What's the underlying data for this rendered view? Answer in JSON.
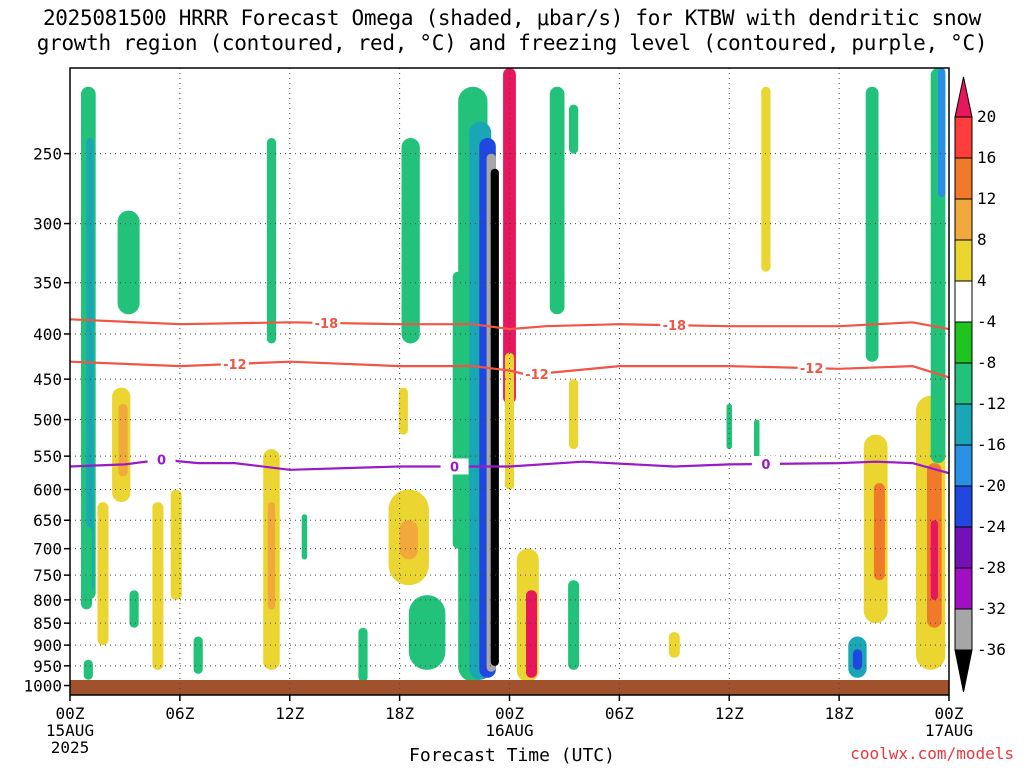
{
  "chart_data": {
    "type": "heatmap",
    "title_line1": "2025081500 HRRR Forecast Omega (shaded, μbar/s) for KTBW with dendritic snow",
    "title_line2": "growth region (contoured, red, °C) and freezing level (contoured, purple, °C)",
    "xlabel": "Forecast Time (UTC)",
    "x_ticks": [
      {
        "hour": 0,
        "label": "00Z",
        "sub": "15AUG",
        "sub2": "2025"
      },
      {
        "hour": 6,
        "label": "06Z"
      },
      {
        "hour": 12,
        "label": "12Z"
      },
      {
        "hour": 18,
        "label": "18Z"
      },
      {
        "hour": 24,
        "label": "00Z",
        "sub": "16AUG"
      },
      {
        "hour": 30,
        "label": "06Z"
      },
      {
        "hour": 36,
        "label": "12Z"
      },
      {
        "hour": 42,
        "label": "18Z"
      },
      {
        "hour": 48,
        "label": "00Z",
        "sub": "17AUG"
      }
    ],
    "xlim": [
      0,
      48
    ],
    "y_ticks": [
      250,
      300,
      350,
      400,
      450,
      500,
      550,
      600,
      650,
      700,
      750,
      800,
      850,
      900,
      950,
      1000
    ],
    "ylim": [
      200,
      1025
    ],
    "ylog": true,
    "grid": true,
    "colorbar": {
      "labels": [
        20,
        16,
        12,
        8,
        4,
        -4,
        -8,
        -12,
        -16,
        -20,
        -24,
        -28,
        -32,
        -36
      ],
      "colors": [
        "#e8175d",
        "#ff3d3d",
        "#f07a2a",
        "#f2a93b",
        "#ebd531",
        "#ffffff",
        "#1fc41f",
        "#22c27a",
        "#19a6b5",
        "#2990e6",
        "#2047e0",
        "#7510b8",
        "#a00fc4",
        "#a6a6a6",
        "#000000"
      ],
      "below_color": "#000000",
      "above_color": "#e8175d"
    },
    "contours": [
      {
        "level": -18,
        "color": "#f05545",
        "hours": [
          0,
          6,
          12,
          18,
          22,
          24,
          26,
          30,
          36,
          42,
          46,
          48
        ],
        "pressure": [
          385,
          390,
          388,
          390,
          390,
          395,
          392,
          390,
          392,
          392,
          388,
          395
        ],
        "labels": [
          {
            "hour": 14,
            "text": "-18"
          },
          {
            "hour": 33,
            "text": "-18"
          }
        ]
      },
      {
        "level": -12,
        "color": "#f05545",
        "hours": [
          0,
          6,
          12,
          18,
          22,
          24,
          25,
          30,
          36,
          42,
          46,
          48
        ],
        "pressure": [
          430,
          435,
          430,
          435,
          435,
          440,
          445,
          435,
          435,
          438,
          435,
          448
        ],
        "labels": [
          {
            "hour": 9,
            "text": "-12"
          },
          {
            "hour": 25.5,
            "text": "-12"
          },
          {
            "hour": 40.5,
            "text": "-12"
          }
        ]
      },
      {
        "level": 0,
        "color": "#9a1ac7",
        "hours": [
          0,
          3,
          5,
          7,
          9,
          12,
          18,
          24,
          28,
          33,
          36,
          42,
          44,
          46,
          48
        ],
        "pressure": [
          565,
          562,
          555,
          560,
          560,
          570,
          565,
          565,
          558,
          565,
          562,
          560,
          558,
          560,
          575
        ],
        "labels": [
          {
            "hour": 5,
            "text": "0"
          },
          {
            "hour": 21,
            "text": "0"
          },
          {
            "hour": 38,
            "text": "0"
          }
        ]
      }
    ],
    "omega_features": [
      {
        "hour": 1.0,
        "width": 0.8,
        "p_top": 210,
        "p_bot": 800,
        "value": -8
      },
      {
        "hour": 1.1,
        "width": 0.4,
        "p_top": 240,
        "p_bot": 780,
        "value": -12
      },
      {
        "hour": 3.2,
        "width": 1.2,
        "p_top": 290,
        "p_bot": 380,
        "value": -8
      },
      {
        "hour": 2.8,
        "width": 1.0,
        "p_top": 460,
        "p_bot": 620,
        "value": 6
      },
      {
        "hour": 2.9,
        "width": 0.5,
        "p_top": 480,
        "p_bot": 580,
        "value": 10
      },
      {
        "hour": 0.9,
        "width": 0.6,
        "p_top": 660,
        "p_bot": 820,
        "value": -10
      },
      {
        "hour": 1.0,
        "width": 0.5,
        "p_top": 935,
        "p_bot": 985,
        "value": -10
      },
      {
        "hour": 1.8,
        "width": 0.6,
        "p_top": 620,
        "p_bot": 900,
        "value": 5
      },
      {
        "hour": 3.5,
        "width": 0.5,
        "p_top": 780,
        "p_bot": 860,
        "value": -8
      },
      {
        "hour": 4.8,
        "width": 0.6,
        "p_top": 620,
        "p_bot": 960,
        "value": 5
      },
      {
        "hour": 5.8,
        "width": 0.6,
        "p_top": 600,
        "p_bot": 800,
        "value": 5
      },
      {
        "hour": 7.0,
        "width": 0.5,
        "p_top": 880,
        "p_bot": 970,
        "value": -8
      },
      {
        "hour": 11.0,
        "width": 0.5,
        "p_top": 240,
        "p_bot": 410,
        "value": -8
      },
      {
        "hour": 11.0,
        "width": 0.9,
        "p_top": 540,
        "p_bot": 960,
        "value": 6
      },
      {
        "hour": 11.0,
        "width": 0.4,
        "p_top": 620,
        "p_bot": 820,
        "value": 10
      },
      {
        "hour": 12.8,
        "width": 0.3,
        "p_top": 640,
        "p_bot": 720,
        "value": -8
      },
      {
        "hour": 16.0,
        "width": 0.5,
        "p_top": 860,
        "p_bot": 990,
        "value": -8
      },
      {
        "hour": 18.5,
        "width": 2.2,
        "p_top": 600,
        "p_bot": 770,
        "value": 6
      },
      {
        "hour": 18.5,
        "width": 1.0,
        "p_top": 650,
        "p_bot": 720,
        "value": 11
      },
      {
        "hour": 19.5,
        "width": 2.0,
        "p_top": 790,
        "p_bot": 960,
        "value": -8
      },
      {
        "hour": 18.2,
        "width": 0.5,
        "p_top": 460,
        "p_bot": 520,
        "value": 5
      },
      {
        "hour": 18.6,
        "width": 1.0,
        "p_top": 240,
        "p_bot": 410,
        "value": -8
      },
      {
        "hour": 21.2,
        "width": 0.6,
        "p_top": 340,
        "p_bot": 700,
        "value": -8
      },
      {
        "hour": 22.0,
        "width": 1.6,
        "p_top": 210,
        "p_bot": 990,
        "value": -10
      },
      {
        "hour": 22.4,
        "width": 1.2,
        "p_top": 230,
        "p_bot": 985,
        "value": -14
      },
      {
        "hour": 22.8,
        "width": 0.9,
        "p_top": 240,
        "p_bot": 980,
        "value": -22
      },
      {
        "hour": 23.0,
        "width": 0.5,
        "p_top": 250,
        "p_bot": 965,
        "value": -34
      },
      {
        "hour": 23.2,
        "width": 0.45,
        "p_top": 260,
        "p_bot": 950,
        "value": -40
      },
      {
        "hour": 24.0,
        "width": 0.7,
        "p_top": 200,
        "p_bot": 480,
        "value": 20
      },
      {
        "hour": 24.0,
        "width": 0.5,
        "p_top": 420,
        "p_bot": 600,
        "value": 6
      },
      {
        "hour": 25.0,
        "width": 1.2,
        "p_top": 700,
        "p_bot": 990,
        "value": 5
      },
      {
        "hour": 25.2,
        "width": 0.6,
        "p_top": 780,
        "p_bot": 980,
        "value": 20
      },
      {
        "hour": 26.6,
        "width": 0.8,
        "p_top": 210,
        "p_bot": 380,
        "value": -8
      },
      {
        "hour": 27.5,
        "width": 0.5,
        "p_top": 220,
        "p_bot": 250,
        "value": -8
      },
      {
        "hour": 27.5,
        "width": 0.5,
        "p_top": 450,
        "p_bot": 540,
        "value": 5
      },
      {
        "hour": 27.5,
        "width": 0.6,
        "p_top": 760,
        "p_bot": 960,
        "value": -8
      },
      {
        "hour": 33.0,
        "width": 0.6,
        "p_top": 870,
        "p_bot": 930,
        "value": 5
      },
      {
        "hour": 36.0,
        "width": 0.3,
        "p_top": 480,
        "p_bot": 540,
        "value": -8
      },
      {
        "hour": 37.5,
        "width": 0.3,
        "p_top": 500,
        "p_bot": 560,
        "value": -8
      },
      {
        "hour": 38.0,
        "width": 0.5,
        "p_top": 210,
        "p_bot": 340,
        "value": 5
      },
      {
        "hour": 43.8,
        "width": 0.7,
        "p_top": 210,
        "p_bot": 430,
        "value": -8
      },
      {
        "hour": 44.0,
        "width": 1.3,
        "p_top": 520,
        "p_bot": 850,
        "value": 6
      },
      {
        "hour": 44.2,
        "width": 0.6,
        "p_top": 590,
        "p_bot": 760,
        "value": 12
      },
      {
        "hour": 43.0,
        "width": 1.0,
        "p_top": 880,
        "p_bot": 980,
        "value": -14
      },
      {
        "hour": 43.0,
        "width": 0.5,
        "p_top": 910,
        "p_bot": 960,
        "value": -22
      },
      {
        "hour": 47.0,
        "width": 1.6,
        "p_top": 470,
        "p_bot": 960,
        "value": 6
      },
      {
        "hour": 47.2,
        "width": 0.8,
        "p_top": 560,
        "p_bot": 860,
        "value": 14
      },
      {
        "hour": 47.2,
        "width": 0.4,
        "p_top": 650,
        "p_bot": 800,
        "value": 20
      },
      {
        "hour": 47.4,
        "width": 0.8,
        "p_top": 200,
        "p_bot": 560,
        "value": -8
      },
      {
        "hour": 47.6,
        "width": 0.4,
        "p_top": 200,
        "p_bot": 280,
        "value": -16
      }
    ]
  },
  "credit": "coolwx.com/models"
}
